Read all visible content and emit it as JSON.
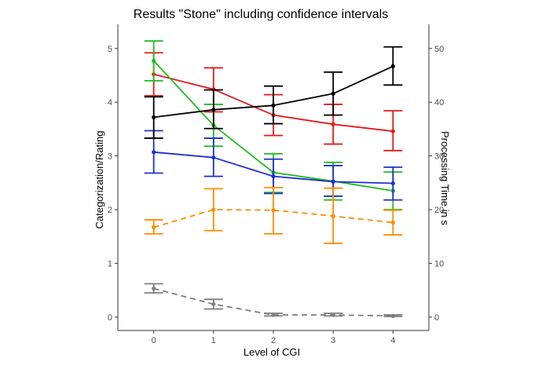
{
  "chart_data": {
    "type": "line",
    "title": "Results \"Stone\" including confidence intervals",
    "xlabel": "Level of CGI",
    "ylabel": "Categorization/Rating",
    "ylabel_right": "Processing Time in s",
    "x": [
      0,
      1,
      2,
      3,
      4
    ],
    "x_ticks": [
      "0",
      "1",
      "2",
      "3",
      "4"
    ],
    "xlim": [
      -0.6,
      4.6
    ],
    "ylim": [
      -0.25,
      5.45
    ],
    "y_ticks": [
      0,
      1,
      2,
      3,
      4,
      5
    ],
    "ylim_right": [
      -2.5,
      54.5
    ],
    "y_ticks_right": [
      0,
      10,
      20,
      30,
      40,
      50
    ],
    "grid": false,
    "legend": "none",
    "series": [
      {
        "color": "#e41a1c",
        "axis": "left",
        "dash": false,
        "values": [
          4.52,
          4.24,
          3.76,
          3.59,
          3.46
        ],
        "lower": [
          4.12,
          3.82,
          3.38,
          3.22,
          3.1
        ],
        "upper": [
          4.92,
          4.64,
          4.14,
          3.96,
          3.84
        ]
      },
      {
        "color": "#22bb22",
        "axis": "left",
        "dash": false,
        "values": [
          4.77,
          3.57,
          2.69,
          2.53,
          2.35
        ],
        "lower": [
          4.4,
          3.18,
          2.32,
          2.18,
          2.0
        ],
        "upper": [
          5.14,
          3.96,
          3.04,
          2.88,
          2.7
        ]
      },
      {
        "color": "#1f2fd0",
        "axis": "left",
        "dash": false,
        "values": [
          3.07,
          2.97,
          2.62,
          2.52,
          2.49
        ],
        "lower": [
          2.68,
          2.62,
          2.3,
          2.25,
          2.18
        ],
        "upper": [
          3.47,
          3.33,
          2.94,
          2.82,
          2.79
        ]
      },
      {
        "color": "#000000",
        "axis": "right",
        "dash": false,
        "values": [
          37.2,
          38.6,
          39.4,
          41.6,
          46.7
        ],
        "lower": [
          33.3,
          35.1,
          36.0,
          37.6,
          43.2
        ],
        "upper": [
          41.0,
          42.3,
          43.0,
          45.6,
          50.3
        ]
      },
      {
        "color": "#ff8c00",
        "axis": "left",
        "dash": true,
        "values": [
          1.67,
          2.0,
          1.99,
          1.88,
          1.76
        ],
        "lower": [
          1.55,
          1.61,
          1.55,
          1.37,
          1.53
        ],
        "upper": [
          1.81,
          2.39,
          2.41,
          2.4,
          1.99
        ]
      },
      {
        "color": "#7f7f7f",
        "axis": "left",
        "dash": true,
        "values": [
          0.53,
          0.24,
          0.04,
          0.04,
          0.02
        ],
        "lower": [
          0.45,
          0.15,
          0.02,
          0.02,
          0.01
        ],
        "upper": [
          0.62,
          0.33,
          0.07,
          0.07,
          0.04
        ]
      }
    ]
  }
}
